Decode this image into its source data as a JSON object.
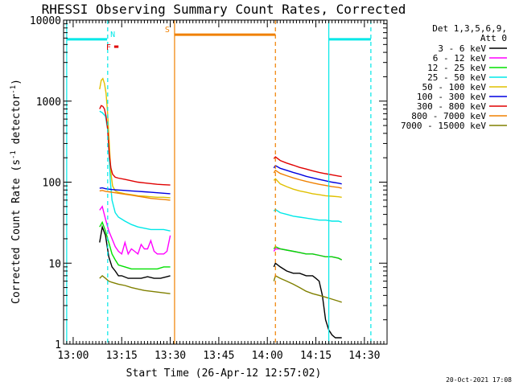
{
  "chart_data": {
    "type": "line",
    "title": "RHESSI Observing Summary Count Rates, Corrected",
    "xlabel": "Start Time (26-Apr-12 12:57:02)",
    "ylabel": "Corrected Count Rate (s⁻¹ detector⁻¹)",
    "ylabel_parts": {
      "pre": "Corrected Count Rate (s",
      "sup1": "-1",
      "mid": " detector",
      "sup2": "-1",
      "post": ")"
    },
    "y_scale": "log",
    "xlim": [
      "12:57:02",
      "14:37:00"
    ],
    "ylim": [
      1,
      10000
    ],
    "x_ticks": [
      "13:00",
      "13:15",
      "13:30",
      "13:45",
      "14:00",
      "14:15",
      "14:30"
    ],
    "y_ticks": [
      "1",
      "10",
      "100",
      "1000",
      "10000"
    ],
    "timestamp": "20-Oct-2021 17:08",
    "legend": {
      "position": "right",
      "header": [
        "Det 1,3,5,6,9,",
        "Att 0"
      ],
      "entries": [
        {
          "label": "3 - 6 keV",
          "color": "#000000"
        },
        {
          "label": "6 - 12 keV",
          "color": "#ff00ff"
        },
        {
          "label": "12 - 25 keV",
          "color": "#00e000"
        },
        {
          "label": "25 - 50 keV",
          "color": "#00e8e8"
        },
        {
          "label": "50 - 100 keV",
          "color": "#e0c000"
        },
        {
          "label": "100 - 300 keV",
          "color": "#0000e0"
        },
        {
          "label": "300 - 800 keV",
          "color": "#e00000"
        },
        {
          "label": "800 - 7000 keV",
          "color": "#f08000"
        },
        {
          "label": "7000 - 15000 keV",
          "color": "#808000"
        }
      ]
    },
    "annotations": [
      {
        "label": "N",
        "color": "#00e8e8",
        "x_start": "12:58:00",
        "x_end": "13:10:30",
        "y": 5800
      },
      {
        "label": "F",
        "color": "#e00000",
        "x_start": "13:12:40",
        "x_end": "13:14:00",
        "y": 4700
      },
      {
        "label": "S",
        "color": "#f08000",
        "x_start": "13:31:20",
        "x_end": "14:02:30",
        "y": 6600
      },
      {
        "label": "",
        "color": "#00e8e8",
        "x_start": "14:19:00",
        "x_end": "14:32:00",
        "y": 5800
      }
    ],
    "vertical_markers": [
      {
        "x": "12:58:00",
        "color": "#00e8e8",
        "style": "solid"
      },
      {
        "x": "13:10:40",
        "color": "#00e8e8",
        "style": "dashed"
      },
      {
        "x": "13:31:20",
        "color": "#f08000",
        "style": "solid"
      },
      {
        "x": "14:02:30",
        "color": "#f08000",
        "style": "dashed"
      },
      {
        "x": "14:19:00",
        "color": "#00e8e8",
        "style": "solid"
      },
      {
        "x": "14:32:00",
        "color": "#00e8e8",
        "style": "dashed"
      }
    ],
    "series": [
      {
        "name": "3 - 6 keV",
        "color": "#000000",
        "segments": [
          {
            "x": [
              "13:08:10",
              "13:09:00",
              "13:10:00",
              "13:11:00",
              "13:12:00",
              "13:13:00",
              "13:14:00",
              "13:15:00",
              "13:17:00",
              "13:19:00",
              "13:21:00",
              "13:23:00",
              "13:25:00",
              "13:27:00",
              "13:29:00",
              "13:30:00"
            ],
            "y": [
              18,
              28,
              22,
              12,
              9,
              8,
              7,
              7,
              6.5,
              6.5,
              6.5,
              6.8,
              6.5,
              6.5,
              6.8,
              7
            ]
          },
          {
            "x": [
              "14:02:00",
              "14:02:30",
              "14:04:00",
              "14:06:00",
              "14:08:00",
              "14:10:00",
              "14:12:00",
              "14:14:00",
              "14:15:00",
              "14:16:00",
              "14:17:00",
              "14:18:00",
              "14:19:00",
              "14:20:00",
              "14:21:00",
              "14:22:00",
              "14:23:00"
            ],
            "y": [
              9,
              10,
              9,
              8,
              7.5,
              7.5,
              7,
              7,
              6.5,
              6,
              4,
              2,
              1.5,
              1.3,
              1.2,
              1.2,
              1.2
            ]
          }
        ]
      },
      {
        "name": "6 - 12 keV",
        "color": "#ff00ff",
        "segments": [
          {
            "x": [
              "13:08:10",
              "13:09:00",
              "13:10:00",
              "13:11:00",
              "13:12:00",
              "13:13:00",
              "13:14:00",
              "13:15:00",
              "13:16:00",
              "13:17:00",
              "13:18:00",
              "13:19:00",
              "13:20:00",
              "13:21:00",
              "13:22:00",
              "13:23:00",
              "13:24:00",
              "13:25:00",
              "13:26:00",
              "13:27:00",
              "13:28:00",
              "13:29:00",
              "13:30:00"
            ],
            "y": [
              45,
              50,
              35,
              25,
              20,
              16,
              14,
              13,
              18,
              13,
              15,
              14,
              13,
              17,
              15,
              15,
              19,
              14,
              13,
              13,
              13,
              14,
              22
            ]
          },
          {
            "x": [
              "14:02:00",
              "14:02:30",
              "14:04:00",
              "14:06:00",
              "14:08:00",
              "14:10:00",
              "14:12:00",
              "14:14:00",
              "14:16:00",
              "14:18:00",
              "14:20:00",
              "14:22:00",
              "14:23:00"
            ],
            "y": [
              14,
              15,
              15,
              14.5,
              14,
              13.5,
              13,
              13,
              12.5,
              12,
              12,
              11.5,
              11
            ]
          }
        ]
      },
      {
        "name": "12 - 25 keV",
        "color": "#00e000",
        "segments": [
          {
            "x": [
              "13:08:10",
              "13:09:00",
              "13:10:00",
              "13:11:00",
              "13:12:00",
              "13:13:00",
              "13:14:00",
              "13:16:00",
              "13:18:00",
              "13:20:00",
              "13:22:00",
              "13:24:00",
              "13:26:00",
              "13:28:00",
              "13:30:00"
            ],
            "y": [
              28,
              32,
              25,
              18,
              13,
              11,
              9.5,
              9,
              8.5,
              8.5,
              8.5,
              8.5,
              8.5,
              9,
              9
            ]
          },
          {
            "x": [
              "14:02:00",
              "14:02:30",
              "14:04:00",
              "14:06:00",
              "14:08:00",
              "14:10:00",
              "14:12:00",
              "14:14:00",
              "14:16:00",
              "14:18:00",
              "14:20:00",
              "14:22:00",
              "14:23:00"
            ],
            "y": [
              15,
              16,
              15,
              14.5,
              14,
              13.5,
              13,
              13,
              12.5,
              12,
              12,
              11.5,
              11
            ]
          }
        ]
      },
      {
        "name": "25 - 50 keV",
        "color": "#00e8e8",
        "segments": [
          {
            "x": [
              "13:08:10",
              "13:09:00",
              "13:10:00",
              "13:10:40",
              "13:11:00",
              "13:11:30",
              "13:12:00",
              "13:13:00",
              "13:14:00",
              "13:16:00",
              "13:18:00",
              "13:20:00",
              "13:22:00",
              "13:24:00",
              "13:26:00",
              "13:28:00",
              "13:30:00"
            ],
            "y": [
              750,
              720,
              650,
              450,
              250,
              100,
              60,
              42,
              37,
              33,
              30,
              28,
              27,
              26,
              26,
              26,
              25
            ]
          },
          {
            "x": [
              "14:02:00",
              "14:02:30",
              "14:04:00",
              "14:06:00",
              "14:08:00",
              "14:10:00",
              "14:12:00",
              "14:14:00",
              "14:16:00",
              "14:18:00",
              "14:20:00",
              "14:22:00",
              "14:23:00"
            ],
            "y": [
              44,
              46,
              42,
              40,
              38,
              37,
              36,
              35,
              34,
              34,
              33,
              33,
              32
            ]
          }
        ]
      },
      {
        "name": "50 - 100 keV",
        "color": "#e0c000",
        "segments": [
          {
            "x": [
              "13:08:10",
              "13:08:40",
              "13:09:10",
              "13:09:40",
              "13:10:10",
              "13:10:40",
              "13:11:10",
              "13:11:40",
              "13:12:10",
              "13:13:00",
              "13:14:00",
              "13:16:00",
              "13:18:00",
              "13:20:00",
              "13:22:00",
              "13:24:00",
              "13:26:00",
              "13:28:00",
              "13:30:00"
            ],
            "y": [
              1400,
              1800,
              1900,
              1650,
              1250,
              700,
              300,
              130,
              90,
              78,
              75,
              72,
              70,
              68,
              67,
              66,
              65,
              65,
              64
            ]
          },
          {
            "x": [
              "14:02:00",
              "14:02:30",
              "14:04:00",
              "14:06:00",
              "14:08:00",
              "14:10:00",
              "14:12:00",
              "14:14:00",
              "14:16:00",
              "14:18:00",
              "14:20:00",
              "14:22:00",
              "14:23:00"
            ],
            "y": [
              105,
              110,
              95,
              88,
              82,
              78,
              75,
              72,
              70,
              68,
              67,
              66,
              65
            ]
          }
        ]
      },
      {
        "name": "100 - 300 keV",
        "color": "#0000e0",
        "segments": [
          {
            "x": [
              "13:08:10",
              "13:09:00",
              "13:10:00",
              "13:11:00",
              "13:12:00",
              "13:14:00",
              "13:16:00",
              "13:18:00",
              "13:20:00",
              "13:22:00",
              "13:24:00",
              "13:26:00",
              "13:28:00",
              "13:30:00"
            ],
            "y": [
              84,
              85,
              83,
              82,
              81,
              80,
              79,
              78,
              77,
              76,
              75,
              74,
              73,
              72
            ]
          },
          {
            "x": [
              "14:02:00",
              "14:02:30",
              "14:04:00",
              "14:06:00",
              "14:08:00",
              "14:10:00",
              "14:12:00",
              "14:14:00",
              "14:16:00",
              "14:18:00",
              "14:20:00",
              "14:22:00",
              "14:23:00"
            ],
            "y": [
              150,
              160,
              148,
              140,
              132,
              125,
              118,
              113,
              108,
              104,
              100,
              97,
              95
            ]
          }
        ]
      },
      {
        "name": "300 - 800 keV",
        "color": "#e00000",
        "segments": [
          {
            "x": [
              "13:08:10",
              "13:08:40",
              "13:09:10",
              "13:09:40",
              "13:10:10",
              "13:10:40",
              "13:11:10",
              "13:11:40",
              "13:12:10",
              "13:13:00",
              "13:14:00",
              "13:16:00",
              "13:18:00",
              "13:20:00",
              "13:22:00",
              "13:24:00",
              "13:26:00",
              "13:28:00",
              "13:30:00"
            ],
            "y": [
              800,
              880,
              860,
              800,
              650,
              450,
              220,
              150,
              125,
              115,
              112,
              108,
              104,
              100,
              98,
              96,
              94,
              93,
              92
            ]
          },
          {
            "x": [
              "14:02:00",
              "14:02:30",
              "14:04:00",
              "14:06:00",
              "14:08:00",
              "14:10:00",
              "14:12:00",
              "14:14:00",
              "14:16:00",
              "14:18:00",
              "14:20:00",
              "14:22:00",
              "14:23:00"
            ],
            "y": [
              195,
              205,
              185,
              172,
              162,
              152,
              145,
              138,
              132,
              127,
              123,
              119,
              117
            ]
          }
        ]
      },
      {
        "name": "800 - 7000 keV",
        "color": "#f08000",
        "segments": [
          {
            "x": [
              "13:08:10",
              "13:09:00",
              "13:10:00",
              "13:11:00",
              "13:12:00",
              "13:14:00",
              "13:16:00",
              "13:18:00",
              "13:20:00",
              "13:22:00",
              "13:24:00",
              "13:26:00",
              "13:28:00",
              "13:30:00"
            ],
            "y": [
              78,
              79,
              77,
              76,
              75,
              73,
              71,
              69,
              67,
              65,
              63,
              62,
              61,
              60
            ]
          },
          {
            "x": [
              "14:02:00",
              "14:02:30",
              "14:04:00",
              "14:06:00",
              "14:08:00",
              "14:10:00",
              "14:12:00",
              "14:14:00",
              "14:16:00",
              "14:18:00",
              "14:20:00",
              "14:22:00",
              "14:23:00"
            ],
            "y": [
              130,
              140,
              128,
              120,
              113,
              107,
              102,
              98,
              94,
              91,
              88,
              86,
              84
            ]
          }
        ]
      },
      {
        "name": "7000 - 15000 keV",
        "color": "#808000",
        "segments": [
          {
            "x": [
              "13:08:10",
              "13:09:00",
              "13:10:00",
              "13:11:00",
              "13:12:00",
              "13:14:00",
              "13:16:00",
              "13:18:00",
              "13:20:00",
              "13:22:00",
              "13:24:00",
              "13:26:00",
              "13:28:00",
              "13:30:00"
            ],
            "y": [
              6.5,
              7,
              6.5,
              6,
              5.8,
              5.5,
              5.3,
              5,
              4.8,
              4.6,
              4.5,
              4.4,
              4.3,
              4.2
            ]
          },
          {
            "x": [
              "14:02:00",
              "14:02:30",
              "14:04:00",
              "14:06:00",
              "14:08:00",
              "14:10:00",
              "14:12:00",
              "14:14:00",
              "14:16:00",
              "14:18:00",
              "14:20:00",
              "14:22:00",
              "14:23:00"
            ],
            "y": [
              6,
              7,
              6.5,
              6,
              5.5,
              5,
              4.5,
              4.2,
              4,
              3.8,
              3.6,
              3.4,
              3.3
            ]
          }
        ]
      }
    ]
  }
}
